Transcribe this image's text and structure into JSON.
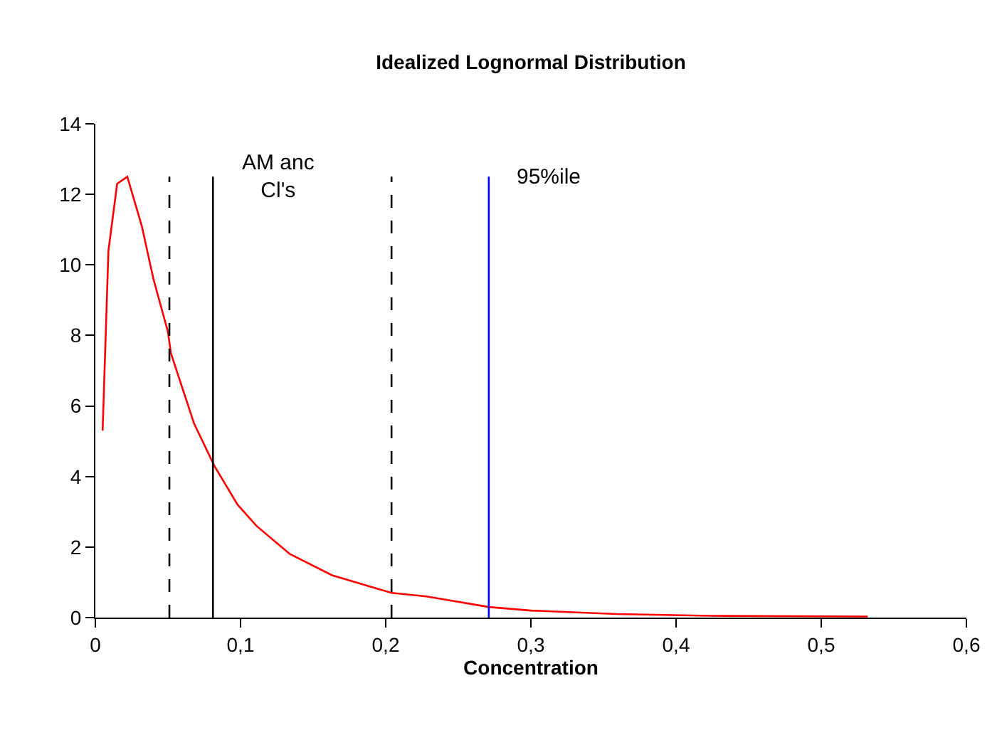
{
  "chart_data": {
    "type": "line",
    "title": "Idealized Lognormal Distribution",
    "xlabel": "Concentration",
    "x": [
      0.005,
      0.009,
      0.015,
      0.022,
      0.032,
      0.04,
      0.05,
      0.052,
      0.068,
      0.082,
      0.098,
      0.111,
      0.134,
      0.163,
      0.204,
      0.228,
      0.271,
      0.3,
      0.359,
      0.424,
      0.532
    ],
    "series": [
      {
        "color": "#ff0000",
        "values": [
          5.3,
          10.4,
          12.3,
          12.5,
          11.1,
          9.6,
          8.1,
          7.5,
          5.5,
          4.3,
          3.2,
          2.6,
          1.8,
          1.2,
          0.7,
          0.6,
          0.3,
          0.2,
          0.1,
          0.05,
          0.03
        ]
      }
    ],
    "xlim": [
      0,
      0.6
    ],
    "xticks": [
      0,
      {
        "value": 0.1,
        "label": "0,1"
      },
      {
        "value": 0.2,
        "label": "0,2"
      },
      {
        "value": 0.3,
        "label": "0,3"
      },
      {
        "value": 0.4,
        "label": "0,4"
      },
      {
        "value": 0.5,
        "label": "0,5"
      },
      {
        "value": 0.6,
        "label": "0,6"
      }
    ],
    "ylim": [
      0,
      14
    ],
    "yticks": [
      0,
      2,
      4,
      6,
      8,
      10,
      12,
      14
    ],
    "ref_lines": [
      {
        "axis": "x",
        "value": 0.051,
        "color": "#000000",
        "line_style": "dashed"
      },
      {
        "axis": "x",
        "value": 0.081,
        "color": "#000000",
        "line_style": "solid",
        "label": "AM anc\nCl's"
      },
      {
        "axis": "x",
        "value": 0.204,
        "color": "#000000",
        "line_style": "dashed"
      },
      {
        "axis": "x",
        "value": 0.271,
        "color": "#0000ff",
        "line_style": "solid",
        "label": "95%ile"
      }
    ],
    "grid": false,
    "marker": "none",
    "line_style": "solid"
  }
}
